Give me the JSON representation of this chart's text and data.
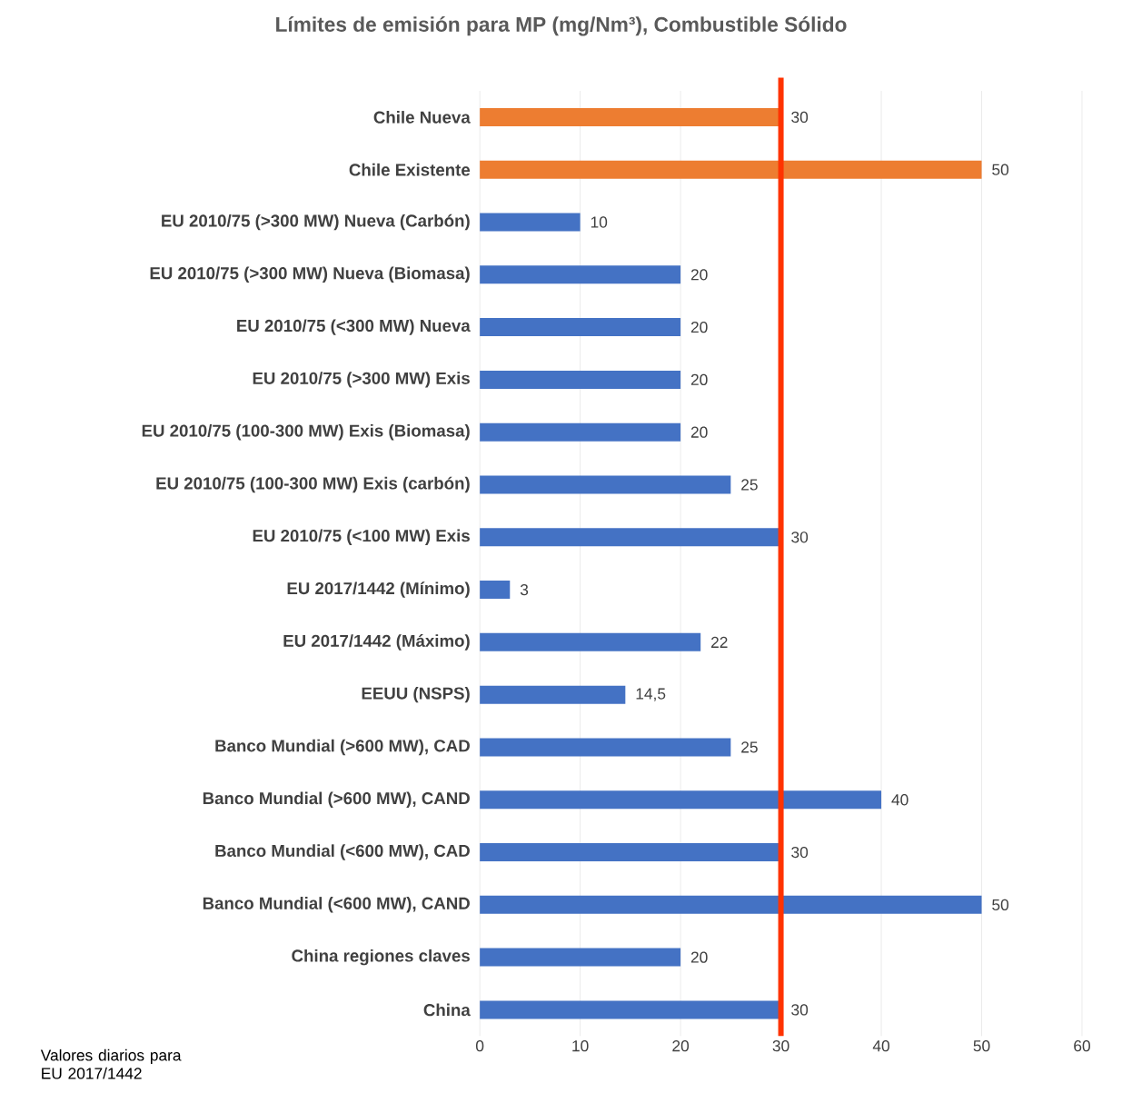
{
  "chart_data": {
    "type": "bar",
    "orientation": "horizontal",
    "title": "Límites de emisión para MP (mg/Nm³), Combustible Sólido",
    "categories": [
      "Chile Nueva",
      "Chile Existente",
      "EU 2010/75 (>300 MW) Nueva (Carbón)",
      "EU 2010/75 (>300 MW) Nueva (Biomasa)",
      "EU 2010/75 (<300 MW) Nueva",
      "EU 2010/75 (>300 MW) Exis",
      "EU 2010/75 (100-300 MW) Exis (Biomasa)",
      "EU 2010/75 (100-300 MW) Exis (carbón)",
      "EU 2010/75 (<100 MW) Exis",
      "EU 2017/1442 (Mínimo)",
      "EU 2017/1442 (Máximo)",
      "EEUU (NSPS)",
      "Banco Mundial (>600 MW), CAD",
      "Banco Mundial (>600 MW), CAND",
      "Banco Mundial (<600 MW), CAD",
      "Banco Mundial (<600 MW), CAND",
      "China regiones claves",
      "China"
    ],
    "values": [
      30,
      50,
      10,
      20,
      20,
      20,
      20,
      25,
      30,
      3,
      22,
      14.5,
      25,
      40,
      30,
      50,
      20,
      30
    ],
    "value_labels": [
      "30",
      "50",
      "10",
      "20",
      "20",
      "20",
      "20",
      "25",
      "30",
      "3",
      "22",
      "14,5",
      "25",
      "40",
      "30",
      "50",
      "20",
      "30"
    ],
    "colors": [
      "#ed7d31",
      "#ed7d31",
      "#4472c4",
      "#4472c4",
      "#4472c4",
      "#4472c4",
      "#4472c4",
      "#4472c4",
      "#4472c4",
      "#4472c4",
      "#4472c4",
      "#4472c4",
      "#4472c4",
      "#4472c4",
      "#4472c4",
      "#4472c4",
      "#4472c4",
      "#4472c4"
    ],
    "xlim": [
      0,
      60
    ],
    "xticks": [
      0,
      10,
      20,
      30,
      40,
      50,
      60
    ],
    "grid": "x",
    "ref_lines": [
      {
        "axis": "x",
        "value": 30,
        "color": "#ff3300"
      }
    ],
    "annotations": [
      "Valores diarios para EU 2017/1442"
    ]
  }
}
